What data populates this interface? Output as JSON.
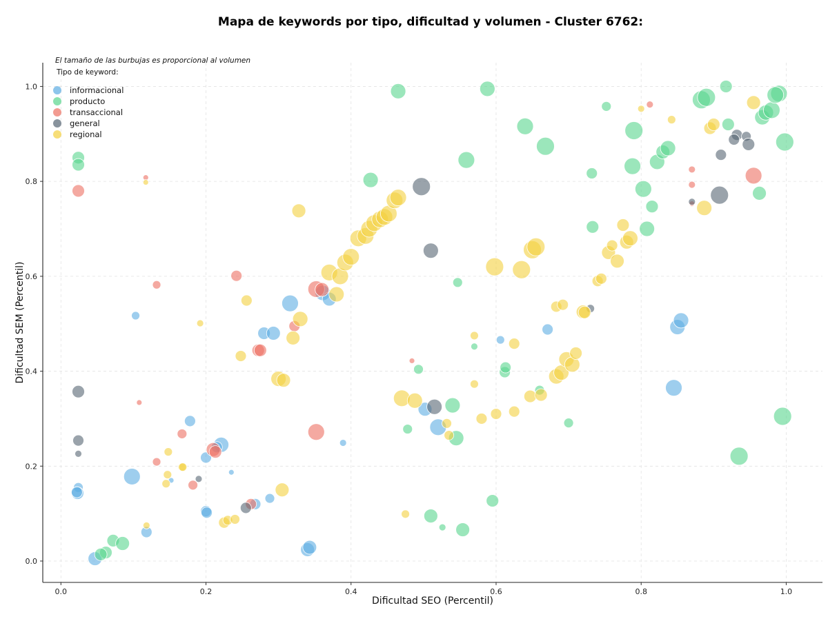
{
  "chart_data": {
    "type": "scatter",
    "title": "Mapa de keywords por tipo, dificultad y volumen - Cluster 6762:",
    "xlabel": "Dificultad SEO (Percentil)",
    "ylabel": "Dificultad SEM (Percentil)",
    "xlim": [
      -0.025,
      1.05
    ],
    "ylim": [
      -0.045,
      1.05
    ],
    "xticks": [
      "0.0",
      "0.2",
      "0.4",
      "0.6",
      "0.8",
      "1.0"
    ],
    "yticks": [
      "0.0",
      "0.2",
      "0.4",
      "0.6",
      "0.8",
      "1.0"
    ],
    "grid": true,
    "annotation": "El tamaño de las burbujas es proporcional al volumen",
    "legend_title": "Tipo de keyword:",
    "legend_position": "top-left",
    "series": [
      {
        "name": "informacional",
        "color": "#5DADE2",
        "points": [
          [
            0.047,
            0.005,
            10
          ],
          [
            0.098,
            0.178,
            12
          ],
          [
            0.103,
            0.517,
            6
          ],
          [
            0.118,
            0.061,
            8
          ],
          [
            0.024,
            0.155,
            7
          ],
          [
            0.023,
            0.143,
            9
          ],
          [
            0.022,
            0.145,
            8
          ],
          [
            0.152,
            0.17,
            4
          ],
          [
            0.178,
            0.295,
            8
          ],
          [
            0.2,
            0.105,
            8
          ],
          [
            0.201,
            0.102,
            8
          ],
          [
            0.2,
            0.218,
            8
          ],
          [
            0.221,
            0.245,
            11
          ],
          [
            0.215,
            0.24,
            8
          ],
          [
            0.235,
            0.187,
            4
          ],
          [
            0.268,
            0.12,
            8
          ],
          [
            0.28,
            0.48,
            9
          ],
          [
            0.293,
            0.48,
            10
          ],
          [
            0.288,
            0.132,
            7
          ],
          [
            0.316,
            0.543,
            12
          ],
          [
            0.34,
            0.024,
            10
          ],
          [
            0.343,
            0.029,
            10
          ],
          [
            0.361,
            0.565,
            11
          ],
          [
            0.37,
            0.552,
            10
          ],
          [
            0.389,
            0.249,
            5
          ],
          [
            0.502,
            0.32,
            10
          ],
          [
            0.52,
            0.282,
            12
          ],
          [
            0.606,
            0.466,
            6
          ],
          [
            0.671,
            0.488,
            8
          ],
          [
            0.845,
            0.365,
            12
          ],
          [
            0.85,
            0.493,
            11
          ],
          [
            0.855,
            0.507,
            11
          ]
        ]
      },
      {
        "name": "producto",
        "color": "#58D68D",
        "points": [
          [
            0.062,
            0.018,
            9
          ],
          [
            0.055,
            0.014,
            9
          ],
          [
            0.072,
            0.043,
            9
          ],
          [
            0.085,
            0.037,
            10
          ],
          [
            0.024,
            0.85,
            9
          ],
          [
            0.024,
            0.835,
            9
          ],
          [
            0.465,
            0.99,
            11
          ],
          [
            0.427,
            0.803,
            11
          ],
          [
            0.588,
            0.995,
            11
          ],
          [
            0.559,
            0.845,
            12
          ],
          [
            0.64,
            0.916,
            12
          ],
          [
            0.668,
            0.874,
            13
          ],
          [
            0.547,
            0.587,
            7
          ],
          [
            0.57,
            0.452,
            5
          ],
          [
            0.493,
            0.404,
            7
          ],
          [
            0.478,
            0.278,
            7
          ],
          [
            0.54,
            0.328,
            11
          ],
          [
            0.545,
            0.259,
            11
          ],
          [
            0.612,
            0.398,
            8
          ],
          [
            0.613,
            0.408,
            8
          ],
          [
            0.66,
            0.36,
            7
          ],
          [
            0.7,
            0.291,
            7
          ],
          [
            0.595,
            0.127,
            9
          ],
          [
            0.51,
            0.095,
            10
          ],
          [
            0.526,
            0.071,
            5
          ],
          [
            0.554,
            0.066,
            10
          ],
          [
            0.732,
            0.817,
            8
          ],
          [
            0.733,
            0.704,
            9
          ],
          [
            0.752,
            0.958,
            7
          ],
          [
            0.79,
            0.907,
            13
          ],
          [
            0.788,
            0.832,
            12
          ],
          [
            0.803,
            0.784,
            12
          ],
          [
            0.808,
            0.7,
            11
          ],
          [
            0.815,
            0.747,
            9
          ],
          [
            0.822,
            0.841,
            11
          ],
          [
            0.83,
            0.862,
            10
          ],
          [
            0.837,
            0.87,
            11
          ],
          [
            0.883,
            0.972,
            13
          ],
          [
            0.89,
            0.977,
            13
          ],
          [
            0.917,
            1.0,
            9
          ],
          [
            0.92,
            0.92,
            9
          ],
          [
            0.963,
            0.775,
            10
          ],
          [
            0.967,
            0.935,
            11
          ],
          [
            0.972,
            0.945,
            11
          ],
          [
            0.98,
            0.95,
            12
          ],
          [
            0.99,
            0.985,
            12
          ],
          [
            0.985,
            0.982,
            12
          ],
          [
            0.998,
            0.883,
            13
          ],
          [
            0.995,
            0.305,
            13
          ],
          [
            0.935,
            0.221,
            13
          ]
        ]
      },
      {
        "name": "transaccional",
        "color": "#EC7063",
        "points": [
          [
            0.024,
            0.78,
            9
          ],
          [
            0.117,
            0.808,
            4
          ],
          [
            0.132,
            0.582,
            6
          ],
          [
            0.108,
            0.334,
            4
          ],
          [
            0.132,
            0.209,
            6
          ],
          [
            0.167,
            0.268,
            7
          ],
          [
            0.182,
            0.16,
            7
          ],
          [
            0.21,
            0.235,
            10
          ],
          [
            0.213,
            0.23,
            9
          ],
          [
            0.242,
            0.601,
            8
          ],
          [
            0.272,
            0.444,
            9
          ],
          [
            0.275,
            0.444,
            9
          ],
          [
            0.262,
            0.12,
            8
          ],
          [
            0.322,
            0.495,
            8
          ],
          [
            0.352,
            0.573,
            12
          ],
          [
            0.36,
            0.572,
            10
          ],
          [
            0.352,
            0.272,
            12
          ],
          [
            0.484,
            0.422,
            4
          ],
          [
            0.812,
            0.962,
            5
          ],
          [
            0.87,
            0.825,
            5
          ],
          [
            0.87,
            0.793,
            5
          ],
          [
            0.87,
            0.753,
            4
          ],
          [
            0.955,
            0.812,
            12
          ]
        ]
      },
      {
        "name": "general",
        "color": "#566573",
        "points": [
          [
            0.024,
            0.357,
            9
          ],
          [
            0.024,
            0.254,
            8
          ],
          [
            0.024,
            0.226,
            5
          ],
          [
            0.19,
            0.173,
            5
          ],
          [
            0.255,
            0.112,
            8
          ],
          [
            0.497,
            0.789,
            13
          ],
          [
            0.51,
            0.654,
            11
          ],
          [
            0.515,
            0.325,
            11
          ],
          [
            0.73,
            0.532,
            6
          ],
          [
            0.87,
            0.757,
            5
          ],
          [
            0.908,
            0.771,
            13
          ],
          [
            0.91,
            0.856,
            8
          ],
          [
            0.932,
            0.898,
            8
          ],
          [
            0.928,
            0.888,
            8
          ],
          [
            0.945,
            0.895,
            7
          ],
          [
            0.948,
            0.878,
            9
          ]
        ]
      },
      {
        "name": "regional",
        "color": "#F4D03F",
        "points": [
          [
            0.117,
            0.798,
            4
          ],
          [
            0.118,
            0.075,
            5
          ],
          [
            0.145,
            0.163,
            6
          ],
          [
            0.147,
            0.182,
            6
          ],
          [
            0.148,
            0.23,
            6
          ],
          [
            0.167,
            0.198,
            6
          ],
          [
            0.168,
            0.198,
            6
          ],
          [
            0.192,
            0.501,
            5
          ],
          [
            0.225,
            0.081,
            8
          ],
          [
            0.23,
            0.086,
            7
          ],
          [
            0.24,
            0.088,
            7
          ],
          [
            0.248,
            0.432,
            8
          ],
          [
            0.256,
            0.549,
            8
          ],
          [
            0.3,
            0.384,
            11
          ],
          [
            0.307,
            0.381,
            10
          ],
          [
            0.305,
            0.15,
            10
          ],
          [
            0.32,
            0.47,
            10
          ],
          [
            0.33,
            0.51,
            11
          ],
          [
            0.328,
            0.738,
            10
          ],
          [
            0.37,
            0.608,
            12
          ],
          [
            0.38,
            0.562,
            11
          ],
          [
            0.385,
            0.6,
            12
          ],
          [
            0.392,
            0.629,
            12
          ],
          [
            0.4,
            0.641,
            12
          ],
          [
            0.41,
            0.68,
            12
          ],
          [
            0.42,
            0.685,
            12
          ],
          [
            0.425,
            0.7,
            12
          ],
          [
            0.432,
            0.712,
            12
          ],
          [
            0.44,
            0.72,
            12
          ],
          [
            0.446,
            0.725,
            12
          ],
          [
            0.452,
            0.732,
            12
          ],
          [
            0.46,
            0.76,
            12
          ],
          [
            0.465,
            0.766,
            12
          ],
          [
            0.47,
            0.343,
            12
          ],
          [
            0.488,
            0.338,
            11
          ],
          [
            0.475,
            0.099,
            6
          ],
          [
            0.532,
            0.29,
            7
          ],
          [
            0.535,
            0.265,
            7
          ],
          [
            0.57,
            0.475,
            6
          ],
          [
            0.57,
            0.373,
            6
          ],
          [
            0.58,
            0.3,
            8
          ],
          [
            0.598,
            0.62,
            13
          ],
          [
            0.6,
            0.31,
            8
          ],
          [
            0.625,
            0.458,
            8
          ],
          [
            0.625,
            0.315,
            8
          ],
          [
            0.635,
            0.614,
            13
          ],
          [
            0.647,
            0.347,
            9
          ],
          [
            0.65,
            0.656,
            13
          ],
          [
            0.655,
            0.662,
            13
          ],
          [
            0.662,
            0.35,
            9
          ],
          [
            0.683,
            0.389,
            11
          ],
          [
            0.683,
            0.536,
            8
          ],
          [
            0.69,
            0.397,
            11
          ],
          [
            0.692,
            0.54,
            8
          ],
          [
            0.697,
            0.425,
            11
          ],
          [
            0.705,
            0.414,
            11
          ],
          [
            0.71,
            0.438,
            9
          ],
          [
            0.72,
            0.525,
            10
          ],
          [
            0.722,
            0.524,
            9
          ],
          [
            0.74,
            0.59,
            8
          ],
          [
            0.745,
            0.595,
            8
          ],
          [
            0.755,
            0.65,
            10
          ],
          [
            0.76,
            0.665,
            8
          ],
          [
            0.767,
            0.632,
            10
          ],
          [
            0.775,
            0.708,
            9
          ],
          [
            0.78,
            0.672,
            10
          ],
          [
            0.785,
            0.68,
            11
          ],
          [
            0.8,
            0.953,
            5
          ],
          [
            0.842,
            0.93,
            6
          ],
          [
            0.887,
            0.744,
            11
          ],
          [
            0.895,
            0.912,
            9
          ],
          [
            0.9,
            0.92,
            9
          ],
          [
            0.955,
            0.966,
            10
          ]
        ]
      }
    ]
  }
}
